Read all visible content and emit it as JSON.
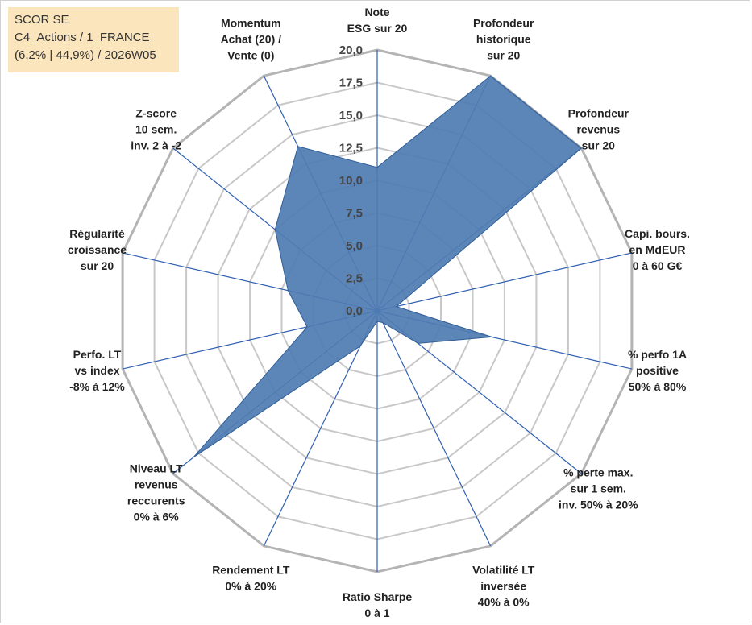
{
  "info_box": {
    "line1": "SCOR SE",
    "line2": "C4_Actions / 1_FRANCE",
    "line3": "(6,2% | 44,9%) / 2026W05"
  },
  "colors": {
    "fill": "#4f7cb2",
    "stroke": "#2f5d96",
    "spokes": "#2f5fb0",
    "grid": "#c8c8c8",
    "outer_grid": "#b4b4b4",
    "info_bg": "#fbe5bd"
  },
  "chart_data": {
    "type": "radar",
    "title": "",
    "rmin": 0,
    "rmax": 20,
    "grid": true,
    "ticks": [
      "0,0",
      "2,5",
      "5,0",
      "7,5",
      "10,0",
      "12,5",
      "15,0",
      "17,5",
      "20,0"
    ],
    "axes": [
      [
        "Note",
        "ESG sur 20"
      ],
      [
        "Profondeur",
        "historique",
        "sur 20"
      ],
      [
        "Profondeur",
        "revenus",
        "sur 20"
      ],
      [
        "Capi. bours.",
        "en MdEUR",
        "0 à 60 G€"
      ],
      [
        "% perfo 1A",
        "positive",
        "50% à 80%"
      ],
      [
        "% perte max.",
        "sur 1 sem.",
        "inv. 50% à 20%"
      ],
      [
        "Volatilité LT",
        "inversée",
        "40% à 0%"
      ],
      [
        "Ratio Sharpe",
        "0 à 1"
      ],
      [
        "Rendement LT",
        "0% à 20%"
      ],
      [
        "Niveau LT",
        "revenus",
        "reccurents",
        "0% à 6%"
      ],
      [
        "Perfo. LT",
        "vs index",
        "-8% à 12%"
      ],
      [
        "Régularité",
        "croissance",
        "sur 20"
      ],
      [
        "Z-score",
        "10 sem.",
        "inv. 2 à -2"
      ],
      [
        "Momentum",
        "Achat (20) /",
        "Vente (0)"
      ]
    ],
    "series": [
      {
        "values": [
          11.0,
          20.0,
          20.0,
          1.5,
          9.0,
          4.0,
          1.0,
          0.8,
          3.0,
          18.0,
          5.5,
          7.0,
          10.0,
          14.0
        ]
      }
    ]
  }
}
